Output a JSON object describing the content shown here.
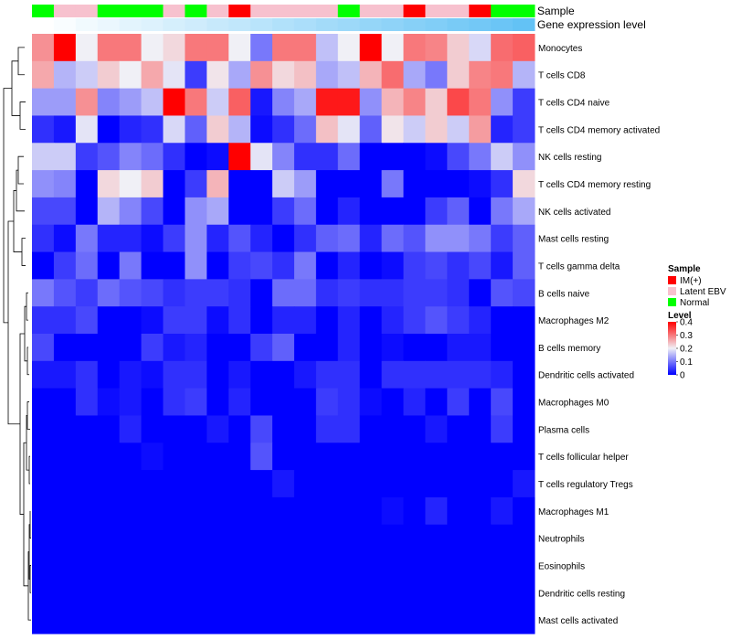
{
  "chart_data": {
    "type": "heatmap",
    "annotation_labels": {
      "sample": "Sample",
      "expression": "Gene expression level"
    },
    "rows": [
      "Monocytes",
      "T cells CD8",
      "T cells CD4 naive",
      "T cells CD4 memory activated",
      "NK cells resting",
      "T cells CD4 memory resting",
      "NK cells activated",
      "Mast cells resting",
      "T cells gamma delta",
      "B cells naive",
      "Macrophages M2",
      "B cells memory",
      "Dendritic cells activated",
      "Macrophages M0",
      "Plasma cells",
      "T cells follicular helper",
      "T cells regulatory  Tregs",
      "Macrophages M1",
      "Neutrophils",
      "Eosinophils",
      "Dendritic cells resting",
      "Mast cells activated"
    ],
    "sample_groups": [
      "Normal",
      "Latent EBV",
      "Latent EBV",
      "Normal",
      "Normal",
      "Normal",
      "Latent EBV",
      "Normal",
      "Latent EBV",
      "IM(+)",
      "Latent EBV",
      "Latent EBV",
      "Latent EBV",
      "Latent EBV",
      "Normal",
      "Latent EBV",
      "Latent EBV",
      "IM(+)",
      "Latent EBV",
      "Latent EBV",
      "IM(+)",
      "Normal",
      "Normal"
    ],
    "expression_level": [
      0.0,
      0.04,
      0.09,
      0.13,
      0.18,
      0.22,
      0.27,
      0.31,
      0.36,
      0.4,
      0.45,
      0.5,
      0.54,
      0.59,
      0.63,
      0.68,
      0.72,
      0.77,
      0.81,
      0.86,
      0.9,
      0.95,
      1.0
    ],
    "values": [
      [
        0.28,
        0.4,
        0.2,
        0.3,
        0.3,
        0.2,
        0.22,
        0.3,
        0.3,
        0.2,
        0.1,
        0.3,
        0.3,
        0.16,
        0.2,
        0.4,
        0.2,
        0.3,
        0.29,
        0.23,
        0.18,
        0.31,
        0.32
      ],
      [
        0.26,
        0.15,
        0.17,
        0.23,
        0.2,
        0.26,
        0.19,
        0.05,
        0.21,
        0.14,
        0.28,
        0.22,
        0.24,
        0.14,
        0.16,
        0.25,
        0.31,
        0.14,
        0.1,
        0.23,
        0.29,
        0.3,
        0.15
      ],
      [
        0.13,
        0.13,
        0.28,
        0.11,
        0.13,
        0.16,
        0.4,
        0.3,
        0.17,
        0.32,
        0.02,
        0.11,
        0.14,
        0.38,
        0.38,
        0.12,
        0.25,
        0.29,
        0.23,
        0.34,
        0.3,
        0.12,
        0.05
      ],
      [
        0.04,
        0.02,
        0.19,
        0.0,
        0.03,
        0.04,
        0.18,
        0.08,
        0.23,
        0.15,
        0.01,
        0.04,
        0.09,
        0.24,
        0.19,
        0.08,
        0.21,
        0.17,
        0.23,
        0.17,
        0.27,
        0.03,
        0.05
      ],
      [
        0.17,
        0.17,
        0.05,
        0.07,
        0.11,
        0.09,
        0.04,
        0.0,
        0.01,
        0.4,
        0.19,
        0.11,
        0.04,
        0.04,
        0.09,
        0.0,
        0.0,
        0.0,
        0.01,
        0.06,
        0.1,
        0.17,
        0.12
      ],
      [
        0.12,
        0.11,
        0.0,
        0.22,
        0.2,
        0.23,
        0.0,
        0.05,
        0.25,
        0.0,
        0.0,
        0.17,
        0.13,
        0.0,
        0.0,
        0.0,
        0.1,
        0.0,
        0.0,
        0.0,
        0.01,
        0.04,
        0.22
      ],
      [
        0.06,
        0.06,
        0.0,
        0.15,
        0.11,
        0.06,
        0.0,
        0.12,
        0.14,
        0.0,
        0.0,
        0.05,
        0.09,
        0.0,
        0.03,
        0.0,
        0.0,
        0.0,
        0.05,
        0.08,
        0.0,
        0.1,
        0.14
      ],
      [
        0.04,
        0.01,
        0.1,
        0.03,
        0.03,
        0.01,
        0.05,
        0.12,
        0.03,
        0.07,
        0.03,
        0.0,
        0.04,
        0.08,
        0.09,
        0.03,
        0.09,
        0.07,
        0.12,
        0.12,
        0.1,
        0.05,
        0.08
      ],
      [
        0.0,
        0.05,
        0.09,
        0.0,
        0.1,
        0.0,
        0.0,
        0.12,
        0.0,
        0.05,
        0.06,
        0.04,
        0.1,
        0.0,
        0.03,
        0.0,
        0.01,
        0.05,
        0.06,
        0.04,
        0.06,
        0.02,
        0.08
      ],
      [
        0.1,
        0.07,
        0.05,
        0.09,
        0.07,
        0.06,
        0.04,
        0.05,
        0.05,
        0.04,
        0.0,
        0.09,
        0.09,
        0.04,
        0.05,
        0.04,
        0.04,
        0.05,
        0.05,
        0.04,
        0.0,
        0.07,
        0.06
      ],
      [
        0.04,
        0.04,
        0.06,
        0.0,
        0.0,
        0.01,
        0.05,
        0.05,
        0.01,
        0.04,
        0.0,
        0.03,
        0.03,
        0.0,
        0.03,
        0.0,
        0.03,
        0.05,
        0.07,
        0.05,
        0.03,
        0.0,
        0.0
      ],
      [
        0.06,
        0.0,
        0.0,
        0.0,
        0.0,
        0.05,
        0.02,
        0.03,
        0.0,
        0.0,
        0.05,
        0.08,
        0.0,
        0.0,
        0.03,
        0.0,
        0.01,
        0.0,
        0.0,
        0.02,
        0.02,
        0.0,
        0.0
      ],
      [
        0.02,
        0.02,
        0.04,
        0.0,
        0.02,
        0.01,
        0.04,
        0.04,
        0.0,
        0.02,
        0.0,
        0.0,
        0.02,
        0.04,
        0.04,
        0.0,
        0.04,
        0.04,
        0.04,
        0.04,
        0.04,
        0.03,
        0.0
      ],
      [
        0.0,
        0.0,
        0.04,
        0.01,
        0.02,
        0.0,
        0.04,
        0.05,
        0.0,
        0.03,
        0.0,
        0.0,
        0.0,
        0.05,
        0.04,
        0.01,
        0.0,
        0.03,
        0.0,
        0.05,
        0.0,
        0.06,
        0.0
      ],
      [
        0.0,
        0.0,
        0.0,
        0.0,
        0.03,
        0.0,
        0.0,
        0.0,
        0.02,
        0.0,
        0.06,
        0.0,
        0.0,
        0.04,
        0.04,
        0.0,
        0.0,
        0.0,
        0.02,
        0.0,
        0.0,
        0.05,
        0.0
      ],
      [
        0.0,
        0.0,
        0.0,
        0.0,
        0.0,
        0.01,
        0.0,
        0.0,
        0.0,
        0.0,
        0.07,
        0.0,
        0.0,
        0.0,
        0.0,
        0.0,
        0.0,
        0.0,
        0.0,
        0.0,
        0.0,
        0.0,
        0.0
      ],
      [
        0.0,
        0.0,
        0.0,
        0.0,
        0.0,
        0.0,
        0.0,
        0.0,
        0.0,
        0.0,
        0.0,
        0.02,
        0.0,
        0.0,
        0.0,
        0.0,
        0.0,
        0.0,
        0.0,
        0.0,
        0.0,
        0.0,
        0.02
      ],
      [
        0.0,
        0.0,
        0.0,
        0.0,
        0.0,
        0.0,
        0.0,
        0.0,
        0.0,
        0.0,
        0.0,
        0.0,
        0.0,
        0.0,
        0.0,
        0.0,
        0.01,
        0.0,
        0.03,
        0.0,
        0.0,
        0.02,
        0.0
      ],
      [
        0.0,
        0.0,
        0.0,
        0.0,
        0.0,
        0.0,
        0.0,
        0.0,
        0.0,
        0.0,
        0.0,
        0.0,
        0.0,
        0.0,
        0.0,
        0.0,
        0.0,
        0.0,
        0.0,
        0.0,
        0.0,
        0.0,
        0.0
      ],
      [
        0.0,
        0.0,
        0.0,
        0.0,
        0.0,
        0.0,
        0.0,
        0.0,
        0.0,
        0.0,
        0.0,
        0.0,
        0.0,
        0.0,
        0.0,
        0.0,
        0.0,
        0.0,
        0.0,
        0.0,
        0.0,
        0.0,
        0.0
      ],
      [
        0.0,
        0.0,
        0.0,
        0.0,
        0.0,
        0.0,
        0.0,
        0.0,
        0.0,
        0.0,
        0.0,
        0.0,
        0.0,
        0.0,
        0.0,
        0.0,
        0.0,
        0.0,
        0.0,
        0.0,
        0.0,
        0.0,
        0.0
      ],
      [
        0.0,
        0.0,
        0.0,
        0.0,
        0.0,
        0.0,
        0.0,
        0.0,
        0.0,
        0.0,
        0.0,
        0.0,
        0.0,
        0.0,
        0.0,
        0.0,
        0.0,
        0.0,
        0.0,
        0.0,
        0.0,
        0.0,
        0.0
      ]
    ],
    "color_scale": {
      "min": 0.0,
      "max": 0.4,
      "stops": [
        {
          "value": 0.0,
          "color": "#0000ff"
        },
        {
          "value": 0.2,
          "color": "#f0f0f6"
        },
        {
          "value": 0.4,
          "color": "#ff0000"
        }
      ]
    },
    "expression_colors": {
      "low": "#ffffff",
      "high": "#63c2f5"
    },
    "legend": {
      "sample_title": "Sample",
      "sample_entries": [
        {
          "label": "IM(+)",
          "color": "#ff0000"
        },
        {
          "label": "Latent EBV",
          "color": "#f7c1ce"
        },
        {
          "label": "Normal",
          "color": "#00ff00"
        }
      ],
      "level_title": "Level",
      "level_ticks": [
        {
          "value": 0.4,
          "label": "0.4"
        },
        {
          "value": 0.3,
          "label": "0.3"
        },
        {
          "value": 0.2,
          "label": "0.2"
        },
        {
          "value": 0.1,
          "label": "0.1"
        },
        {
          "value": 0.0,
          "label": "0"
        }
      ]
    }
  }
}
